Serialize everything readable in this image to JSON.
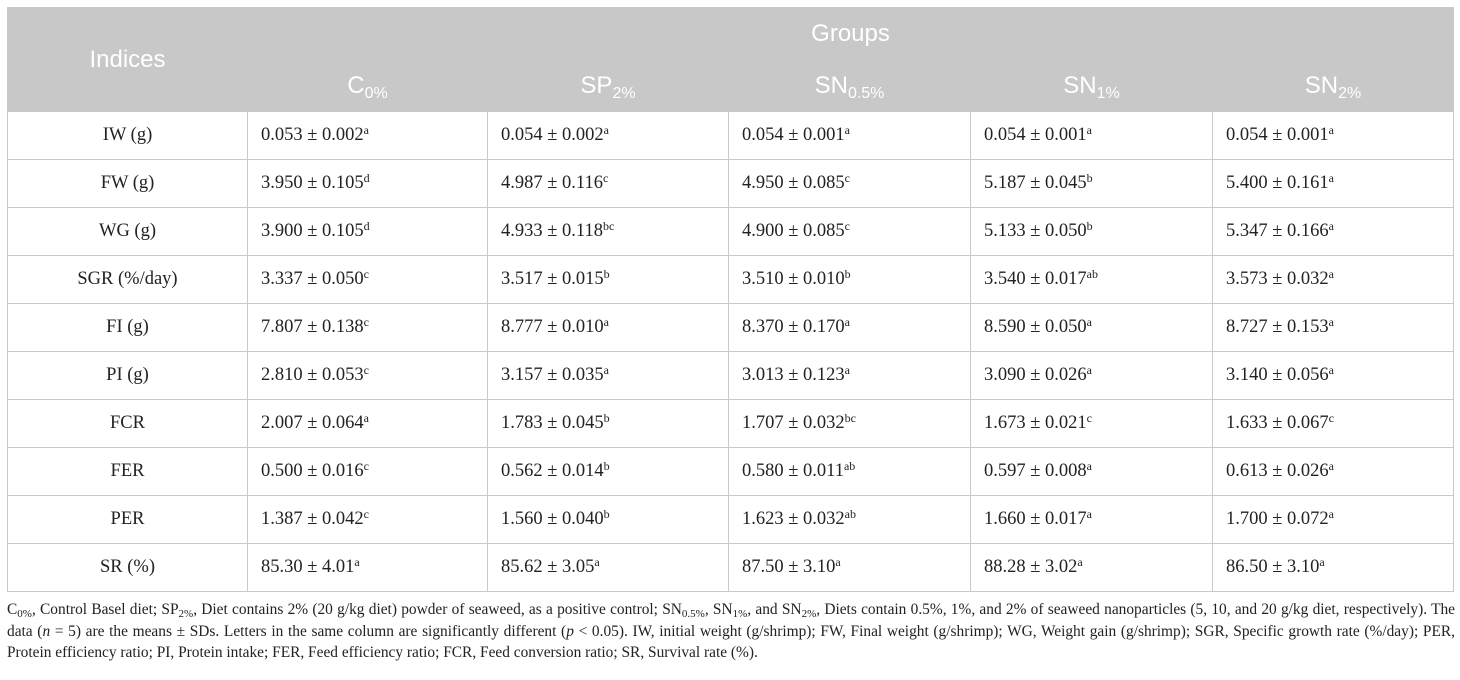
{
  "table": {
    "indices_header": "Indices",
    "groups_header": "Groups",
    "groups": [
      {
        "base": "C",
        "sub": "0%"
      },
      {
        "base": "SP",
        "sub": "2%"
      },
      {
        "base": "SN",
        "sub": "0.5%"
      },
      {
        "base": "SN",
        "sub": "1%"
      },
      {
        "base": "SN",
        "sub": "2%"
      }
    ],
    "rows": [
      {
        "label": "IW (g)",
        "cells": [
          {
            "v": "0.053 ± 0.002",
            "s": "a"
          },
          {
            "v": "0.054 ± 0.002",
            "s": "a"
          },
          {
            "v": "0.054 ± 0.001",
            "s": "a"
          },
          {
            "v": "0.054 ± 0.001",
            "s": "a"
          },
          {
            "v": "0.054 ± 0.001",
            "s": "a"
          }
        ]
      },
      {
        "label": "FW (g)",
        "cells": [
          {
            "v": "3.950 ± 0.105",
            "s": "d"
          },
          {
            "v": "4.987 ± 0.116",
            "s": "c"
          },
          {
            "v": "4.950 ± 0.085",
            "s": "c"
          },
          {
            "v": "5.187 ± 0.045",
            "s": "b"
          },
          {
            "v": "5.400 ± 0.161",
            "s": "a"
          }
        ]
      },
      {
        "label": "WG (g)",
        "cells": [
          {
            "v": "3.900 ± 0.105",
            "s": "d"
          },
          {
            "v": "4.933 ± 0.118",
            "s": "bc"
          },
          {
            "v": "4.900 ± 0.085",
            "s": "c"
          },
          {
            "v": "5.133 ± 0.050",
            "s": "b"
          },
          {
            "v": "5.347 ± 0.166",
            "s": "a"
          }
        ]
      },
      {
        "label": "SGR (%/day)",
        "cells": [
          {
            "v": "3.337 ± 0.050",
            "s": "c"
          },
          {
            "v": "3.517 ± 0.015",
            "s": "b"
          },
          {
            "v": "3.510 ± 0.010",
            "s": "b"
          },
          {
            "v": "3.540 ± 0.017",
            "s": "ab"
          },
          {
            "v": "3.573 ± 0.032",
            "s": "a"
          }
        ]
      },
      {
        "label": "FI (g)",
        "cells": [
          {
            "v": "7.807 ± 0.138",
            "s": "c"
          },
          {
            "v": "8.777 ± 0.010",
            "s": "a"
          },
          {
            "v": "8.370 ± 0.170",
            "s": "a"
          },
          {
            "v": "8.590 ± 0.050",
            "s": "a"
          },
          {
            "v": "8.727 ± 0.153",
            "s": "a"
          }
        ]
      },
      {
        "label": "PI (g)",
        "cells": [
          {
            "v": "2.810 ± 0.053",
            "s": "c"
          },
          {
            "v": "3.157 ± 0.035",
            "s": "a"
          },
          {
            "v": "3.013 ± 0.123",
            "s": "a"
          },
          {
            "v": "3.090 ± 0.026",
            "s": "a"
          },
          {
            "v": "3.140 ± 0.056",
            "s": "a"
          }
        ]
      },
      {
        "label": "FCR",
        "cells": [
          {
            "v": "2.007 ± 0.064",
            "s": "a"
          },
          {
            "v": "1.783 ± 0.045",
            "s": "b"
          },
          {
            "v": "1.707 ± 0.032",
            "s": "bc"
          },
          {
            "v": "1.673 ± 0.021",
            "s": "c"
          },
          {
            "v": "1.633 ± 0.067",
            "s": "c"
          }
        ]
      },
      {
        "label": "FER",
        "cells": [
          {
            "v": "0.500 ± 0.016",
            "s": "c"
          },
          {
            "v": "0.562 ± 0.014",
            "s": "b"
          },
          {
            "v": "0.580 ± 0.011",
            "s": "ab"
          },
          {
            "v": "0.597 ± 0.008",
            "s": "a"
          },
          {
            "v": "0.613 ± 0.026",
            "s": "a"
          }
        ]
      },
      {
        "label": "PER",
        "cells": [
          {
            "v": "1.387 ± 0.042",
            "s": "c"
          },
          {
            "v": "1.560 ± 0.040",
            "s": "b"
          },
          {
            "v": "1.623 ± 0.032",
            "s": "ab"
          },
          {
            "v": "1.660 ± 0.017",
            "s": "a"
          },
          {
            "v": "1.700 ± 0.072",
            "s": "a"
          }
        ]
      },
      {
        "label": "SR (%)",
        "cells": [
          {
            "v": "85.30 ± 4.01",
            "s": "a"
          },
          {
            "v": "85.62 ± 3.05",
            "s": "a"
          },
          {
            "v": "87.50 ± 3.10",
            "s": "a"
          },
          {
            "v": "88.28 ± 3.02",
            "s": "a"
          },
          {
            "v": "86.50 ± 3.10",
            "s": "a"
          }
        ]
      }
    ]
  },
  "footnote": {
    "c0_base": "C",
    "c0_sub": "0%",
    "t1": ", Control Basel diet; ",
    "sp_base": "SP",
    "sp_sub": "2%",
    "t2": ", Diet contains 2% (20 g/kg diet) powder of seaweed, as a positive control; ",
    "sn05_base": "SN",
    "sn05_sub": "0.5%",
    "t3": ", ",
    "sn1_base": "SN",
    "sn1_sub": "1%",
    "t4": ", and ",
    "sn2_base": "SN",
    "sn2_sub": "2%",
    "t5": ", Diets contain 0.5%, 1%, and 2% of seaweed nanoparticles (5, 10, and 20 g/kg diet, respectively). The data (",
    "n_var": "n",
    "t6": " = 5) are the means ± SDs. Letters in the same column are significantly different (",
    "p_var": "p",
    "t7": " < 0.05). IW, initial weight (g/shrimp); FW, Final weight (g/shrimp); WG, Weight gain (g/shrimp); SGR, Specific growth rate (%/day); PER, Protein efficiency ratio; PI, Protein intake; FER, Feed efficiency ratio; FCR, Feed conversion ratio; SR, Survival rate (%)."
  },
  "colors": {
    "header_bg": "#c8c8c8",
    "header_text": "#ffffff",
    "grid_line": "#c9c9c9",
    "body_text": "#222222"
  }
}
